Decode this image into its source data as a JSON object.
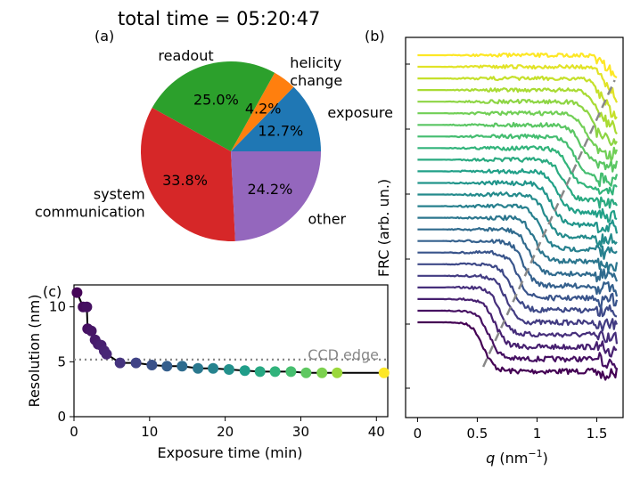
{
  "chart_data": [
    {
      "type": "pie",
      "panel_label": "(a)",
      "title": "total time = 05:20:47",
      "slices": [
        {
          "label": "exposure",
          "value": 12.7,
          "pct_label": "12.7%",
          "color": "#1f77b4"
        },
        {
          "label": "helicity change",
          "label_lines": [
            "helicity",
            "change"
          ],
          "value": 4.2,
          "pct_label": "4.2%",
          "color": "#ff7f0e"
        },
        {
          "label": "readout",
          "label_lines": [
            "readout"
          ],
          "value": 25.0,
          "pct_label": "25.0%",
          "color": "#2ca02c"
        },
        {
          "label": "system communication",
          "label_lines": [
            "system",
            "communication"
          ],
          "value": 33.8,
          "pct_label": "33.8%",
          "color": "#d62728"
        },
        {
          "label": "other",
          "label_lines": [
            "other"
          ],
          "value": 24.2,
          "pct_label": "24.2%",
          "color": "#9467bd"
        }
      ]
    },
    {
      "type": "line",
      "panel_label": "(b)",
      "xlabel": "q (nm⁻¹)",
      "xlabel_parts": {
        "var": "q",
        "unit_pre": " (nm",
        "sup": "−1",
        "unit_post": ")"
      },
      "ylabel": "FRC (arb. un.)",
      "xlim": [
        -0.1,
        1.72
      ],
      "xticks": [
        0,
        0.5,
        1,
        1.5
      ],
      "xtick_labels": [
        "0",
        "0.5",
        "1",
        "1.5"
      ],
      "num_curves": 24,
      "colormap": "viridis",
      "dashed_trend": {
        "color": "#888888",
        "q_start": 0.55,
        "q_end": 1.65
      },
      "note": "24 vertically offset FRC curves from dark purple (bottom) to yellow (top); y-axis has unlabeled ticks"
    },
    {
      "type": "scatter",
      "panel_label": "(c)",
      "xlabel": "Exposure time (min)",
      "ylabel": "Resolution (nm)",
      "xlim": [
        0,
        41.5
      ],
      "ylim": [
        0,
        12
      ],
      "xticks": [
        0,
        10,
        20,
        30,
        40
      ],
      "yticks": [
        0,
        5,
        10
      ],
      "reference_line": {
        "label": "CCD edge",
        "y": 5.2,
        "color": "#888888",
        "style": "dotted"
      },
      "points": [
        {
          "x": 0.4,
          "y": 11.3
        },
        {
          "x": 1.2,
          "y": 10.0
        },
        {
          "x": 1.7,
          "y": 10.0
        },
        {
          "x": 1.8,
          "y": 8.0
        },
        {
          "x": 2.3,
          "y": 7.8
        },
        {
          "x": 2.8,
          "y": 7.0
        },
        {
          "x": 3.2,
          "y": 6.6
        },
        {
          "x": 3.6,
          "y": 6.5
        },
        {
          "x": 4.0,
          "y": 6.0
        },
        {
          "x": 4.3,
          "y": 5.7
        },
        {
          "x": 6.1,
          "y": 4.9
        },
        {
          "x": 8.2,
          "y": 4.9
        },
        {
          "x": 10.3,
          "y": 4.7
        },
        {
          "x": 12.3,
          "y": 4.6
        },
        {
          "x": 14.3,
          "y": 4.6
        },
        {
          "x": 16.4,
          "y": 4.4
        },
        {
          "x": 18.4,
          "y": 4.4
        },
        {
          "x": 20.5,
          "y": 4.3
        },
        {
          "x": 22.6,
          "y": 4.2
        },
        {
          "x": 24.6,
          "y": 4.1
        },
        {
          "x": 26.6,
          "y": 4.1
        },
        {
          "x": 28.7,
          "y": 4.1
        },
        {
          "x": 30.7,
          "y": 4.0
        },
        {
          "x": 32.8,
          "y": 4.0
        },
        {
          "x": 34.8,
          "y": 4.0
        },
        {
          "x": 41.0,
          "y": 4.0
        }
      ]
    }
  ]
}
